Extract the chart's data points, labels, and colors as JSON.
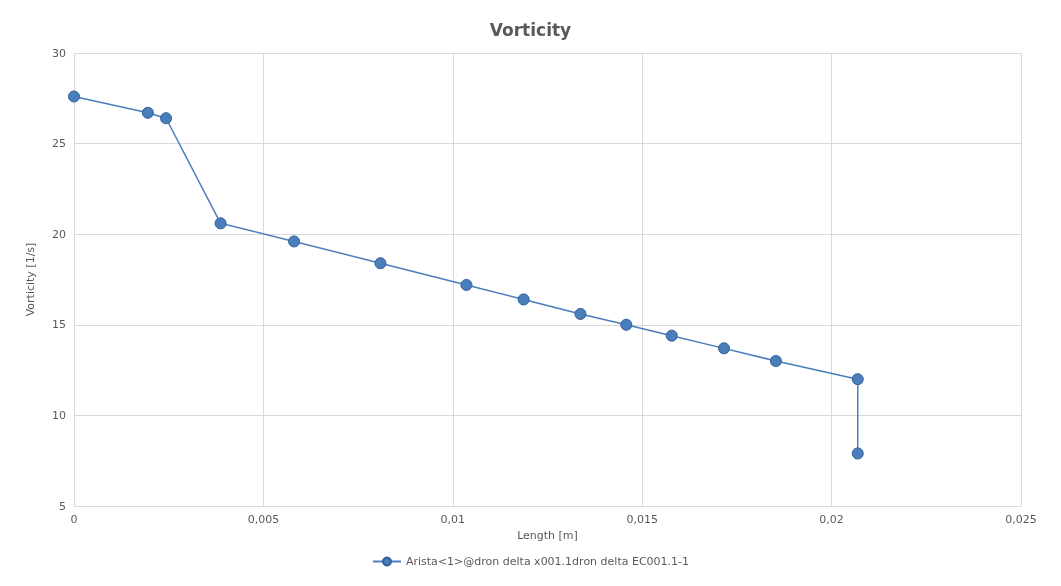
{
  "chart_data": {
    "type": "line",
    "title": "Vorticity",
    "xlabel": "Length [m]",
    "ylabel": "Vorticity [1/s]",
    "xlim": [
      0,
      0.025
    ],
    "xticks": [
      0,
      {
        "value": 0.005,
        "label": "0,005"
      },
      {
        "value": 0.01,
        "label": "0,01"
      },
      {
        "value": 0.015,
        "label": "0,015"
      },
      {
        "value": 0.02,
        "label": "0,02"
      },
      {
        "value": 0.025,
        "label": "0,025"
      }
    ],
    "ylim": [
      5,
      30
    ],
    "yticks": [
      5,
      10,
      15,
      20,
      25,
      30
    ],
    "grid": true,
    "legend": "bottom",
    "marker": "circle",
    "line_style": "solid",
    "series": [
      {
        "name": "Arista<1>@dron delta x001.1dron delta EC001.1-1",
        "color": "#4a7ebb",
        "x": [
          0,
          0.00195,
          0.00243,
          0.00387,
          0.00581,
          0.00809,
          0.01036,
          0.01187,
          0.01337,
          0.01458,
          0.01578,
          0.01716,
          0.01853,
          0.02069,
          0.02069
        ],
        "values": [
          27.6,
          26.7,
          26.4,
          20.6,
          19.6,
          18.4,
          17.2,
          16.4,
          15.6,
          15.0,
          14.4,
          13.7,
          13.0,
          12.0,
          7.9
        ]
      }
    ]
  }
}
